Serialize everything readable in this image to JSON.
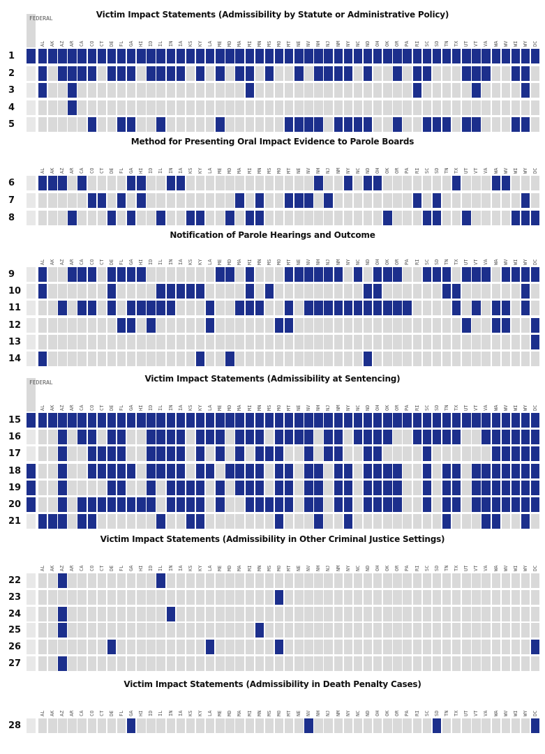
{
  "federal_label": "FEDERAL",
  "states": [
    "AL",
    "AK",
    "AZ",
    "AR",
    "CA",
    "CO",
    "CT",
    "DE",
    "FL",
    "GA",
    "HI",
    "ID",
    "IL",
    "IN",
    "IA",
    "KS",
    "KY",
    "LA",
    "ME",
    "MD",
    "MA",
    "MI",
    "MN",
    "MS",
    "MO",
    "MT",
    "NE",
    "NV",
    "NH",
    "NJ",
    "NM",
    "NY",
    "NC",
    "ND",
    "OH",
    "OK",
    "OR",
    "PA",
    "RI",
    "SC",
    "SD",
    "TN",
    "TX",
    "UT",
    "VT",
    "VA",
    "WA",
    "WV",
    "WI",
    "WY",
    "DC"
  ],
  "colors": {
    "yes": "#1c2f8c",
    "no": "#d9d9d9",
    "federal_bg": "#e8e8e8"
  },
  "chart_data": {
    "type": "heatmap",
    "legend": "none",
    "grid": true,
    "sections": [
      {
        "title": "Victim Impact Statements (Admissibility by Statute or Administrative Policy)",
        "federal_header": true,
        "rows": [
          {
            "label": "1",
            "federal": true,
            "cells": "111111111111111111111111111111111111111111111111111"
          },
          {
            "label": "2",
            "federal": false,
            "cells": "101111011101111010101101001011110100101100011100110"
          },
          {
            "label": "3",
            "federal": false,
            "cells": "100100000000000000000100000000000000001000001000010"
          },
          {
            "label": "4",
            "federal": false,
            "cells": "000100000000000000000000000000000000000000000000000"
          },
          {
            "label": "5",
            "federal": false,
            "cells": "000001001100100000100000011110111100100111011000110"
          }
        ]
      },
      {
        "title": "Method for Presenting Oral Impact Evidence to Parole Boards",
        "federal_header": false,
        "rows": [
          {
            "label": "6",
            "federal": false,
            "cells": "111010000110011000000000000010010110000000100011000"
          },
          {
            "label": "7",
            "federal": false,
            "cells": "000001101010000000001010011101000000001010000000010"
          },
          {
            "label": "8",
            "federal": false,
            "cells": "000100010100100110010110000000000001000110010000111"
          }
        ]
      },
      {
        "title": "Notification of Parole Hearings and Outcome",
        "federal_header": false,
        "rows": [
          {
            "label": "9",
            "federal": false,
            "cells": "100111011110000000110100011111101011100111011101111"
          },
          {
            "label": "10",
            "federal": false,
            "cells": "100000010000111110000101000000000110000001100000010"
          },
          {
            "label": "11",
            "federal": false,
            "cells": "001011010111110001001110010111111111110000101011010"
          },
          {
            "label": "12",
            "federal": false,
            "cells": "000000001101000001000000110000000000000000010011001"
          },
          {
            "label": "13",
            "federal": false,
            "cells": "000000000000000000000000000000000000000000000000001"
          },
          {
            "label": "14",
            "federal": false,
            "cells": "100000000000000010010000000000000100000000000000000"
          }
        ]
      },
      {
        "title": "Victim Impact Statements (Admissibility at Sentencing)",
        "federal_header": true,
        "rows": [
          {
            "label": "15",
            "federal": true,
            "cells": "111111111111111111111111111111111111111111111111111"
          },
          {
            "label": "16",
            "federal": false,
            "cells": "001011011001111011101110111101101111001111100111111"
          },
          {
            "label": "17",
            "federal": false,
            "cells": "001001111001111010101011100101100110000100000011111"
          },
          {
            "label": "18",
            "federal": true,
            "cells": "001001111101111011011110110110110111100101101111111"
          },
          {
            "label": "19",
            "federal": true,
            "cells": "001000011001011110101110110110110111100101101111111"
          },
          {
            "label": "20",
            "federal": true,
            "cells": "001011111111011110100111110110110111100101101111111"
          },
          {
            "label": "21",
            "federal": false,
            "cells": "111011000000100110000000100010010000000001000110010"
          }
        ]
      },
      {
        "title": "Victim Impact Statements (Admissibility in Other Criminal Justice Settings)",
        "federal_header": false,
        "rows": [
          {
            "label": "22",
            "federal": false,
            "cells": "001000000000100000000000000000000000000000000000000"
          },
          {
            "label": "23",
            "federal": false,
            "cells": "000000000000000000000000100000000000000000000000000"
          },
          {
            "label": "24",
            "federal": false,
            "cells": "001000000000010000000000000000000000000000000000000"
          },
          {
            "label": "25",
            "federal": false,
            "cells": "001000000000000000000010000000000000000000000000000"
          },
          {
            "label": "26",
            "federal": false,
            "cells": "000000010000000001000000100000000000000000000000001"
          },
          {
            "label": "27",
            "federal": false,
            "cells": "001000000000000000000000000000000000000000000000000"
          }
        ]
      },
      {
        "title": "Victim Impact Statements (Admissibility in Death Penalty Cases)",
        "federal_header": false,
        "rows": [
          {
            "label": "28",
            "federal": false,
            "cells": "000000000100000000000000000100000000000010000000001"
          }
        ]
      }
    ]
  }
}
